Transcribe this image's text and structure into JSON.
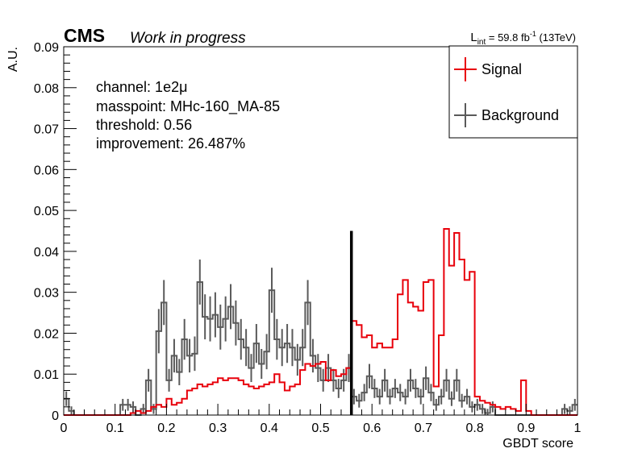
{
  "header": {
    "experiment": "CMS",
    "status": "Work in progress",
    "lumi_prefix": "L",
    "lumi_sub": "int",
    "lumi_value": " = 59.8 fb",
    "lumi_sup": "-1",
    "lumi_suffix": " (13TeV)"
  },
  "info": {
    "channel": "channel: 1e2μ",
    "masspoint": "masspoint: MHc-160_MA-85",
    "threshold": "threshold: 0.56",
    "improvement": "improvement: 26.487%"
  },
  "chart_data": {
    "type": "line",
    "xlabel": "GBDT score",
    "ylabel": "A.U.",
    "xlim": [
      0,
      1
    ],
    "ylim": [
      0,
      0.09
    ],
    "xticks": [
      "0",
      "0.1",
      "0.2",
      "0.3",
      "0.4",
      "0.5",
      "0.6",
      "0.7",
      "0.8",
      "0.9",
      "1"
    ],
    "yticks": [
      "0",
      "0.01",
      "0.02",
      "0.03",
      "0.04",
      "0.05",
      "0.06",
      "0.07",
      "0.08",
      "0.09"
    ],
    "nbins": 100,
    "threshold": 0.56,
    "threshold_line_top": 0.045,
    "grid": false,
    "legend_position": "top-right",
    "colors": {
      "signal": "#e8000b",
      "background": "#5a5a5a",
      "threshold": "#000000"
    },
    "series": [
      {
        "name": "Signal",
        "values": [
          0,
          0,
          0,
          0,
          0,
          0,
          0,
          0,
          0,
          0,
          0,
          0,
          0,
          0.0005,
          0.001,
          0.0005,
          0.001,
          0.002,
          0.0025,
          0.002,
          0.004,
          0.0025,
          0.003,
          0.004,
          0.006,
          0.0065,
          0.0075,
          0.007,
          0.0075,
          0.008,
          0.009,
          0.0085,
          0.009,
          0.009,
          0.0085,
          0.0075,
          0.007,
          0.0065,
          0.007,
          0.0075,
          0.008,
          0.01,
          0.008,
          0.006,
          0.007,
          0.0075,
          0.011,
          0.0125,
          0.012,
          0.0125,
          0.013,
          0.0085,
          0.011,
          0.0095,
          0.01,
          0.0115,
          0.023,
          0.022,
          0.019,
          0.0195,
          0.0165,
          0.0175,
          0.0165,
          0.0165,
          0.0185,
          0.0295,
          0.033,
          0.0275,
          0.0265,
          0.0255,
          0.0325,
          0.033,
          0.007,
          0.0195,
          0.0455,
          0.0365,
          0.0445,
          0.038,
          0.033,
          0.035,
          0.0045,
          0.0035,
          0.003,
          0.0025,
          0.002,
          0.0015,
          0.002,
          0.0015,
          0.001,
          0.0085,
          0.001,
          0,
          0,
          0,
          0,
          0,
          0,
          0,
          0,
          0
        ]
      },
      {
        "name": "Background",
        "values": [
          0.004,
          0.001,
          0,
          0,
          0,
          0,
          0,
          0,
          0,
          0,
          0,
          0.0025,
          0.0025,
          0.002,
          0,
          0.0015,
          0.0085,
          0.0015,
          0.0205,
          0.0275,
          0.0085,
          0.0145,
          0.0105,
          0.0185,
          0.0145,
          0.015,
          0.0325,
          0.024,
          0.0235,
          0.0245,
          0.0215,
          0.0235,
          0.0265,
          0.0225,
          0.0185,
          0.0165,
          0.0115,
          0.0175,
          0.0125,
          0.0155,
          0.0305,
          0.0185,
          0.0165,
          0.0175,
          0.0165,
          0.0135,
          0.0165,
          0.0275,
          0.0145,
          0.0115,
          0.0085,
          0.0115,
          0.0085,
          0.0065,
          0.0085,
          0.0115,
          0.0045,
          0.0035,
          0.0055,
          0.0095,
          0.0065,
          0.0045,
          0.0085,
          0.0045,
          0.0065,
          0.0055,
          0.0045,
          0.0085,
          0.0065,
          0.0045,
          0.009,
          0.0055,
          0.0025,
          0.0045,
          0.0085,
          0.004,
          0.0085,
          0.0035,
          0.0045,
          0.002,
          0.0025,
          0.0015,
          0.0005,
          0.002,
          0,
          0,
          0,
          0,
          0,
          0,
          0,
          0,
          0,
          0,
          0,
          0,
          0,
          0.0015,
          0.001,
          0.0025
        ]
      }
    ]
  }
}
